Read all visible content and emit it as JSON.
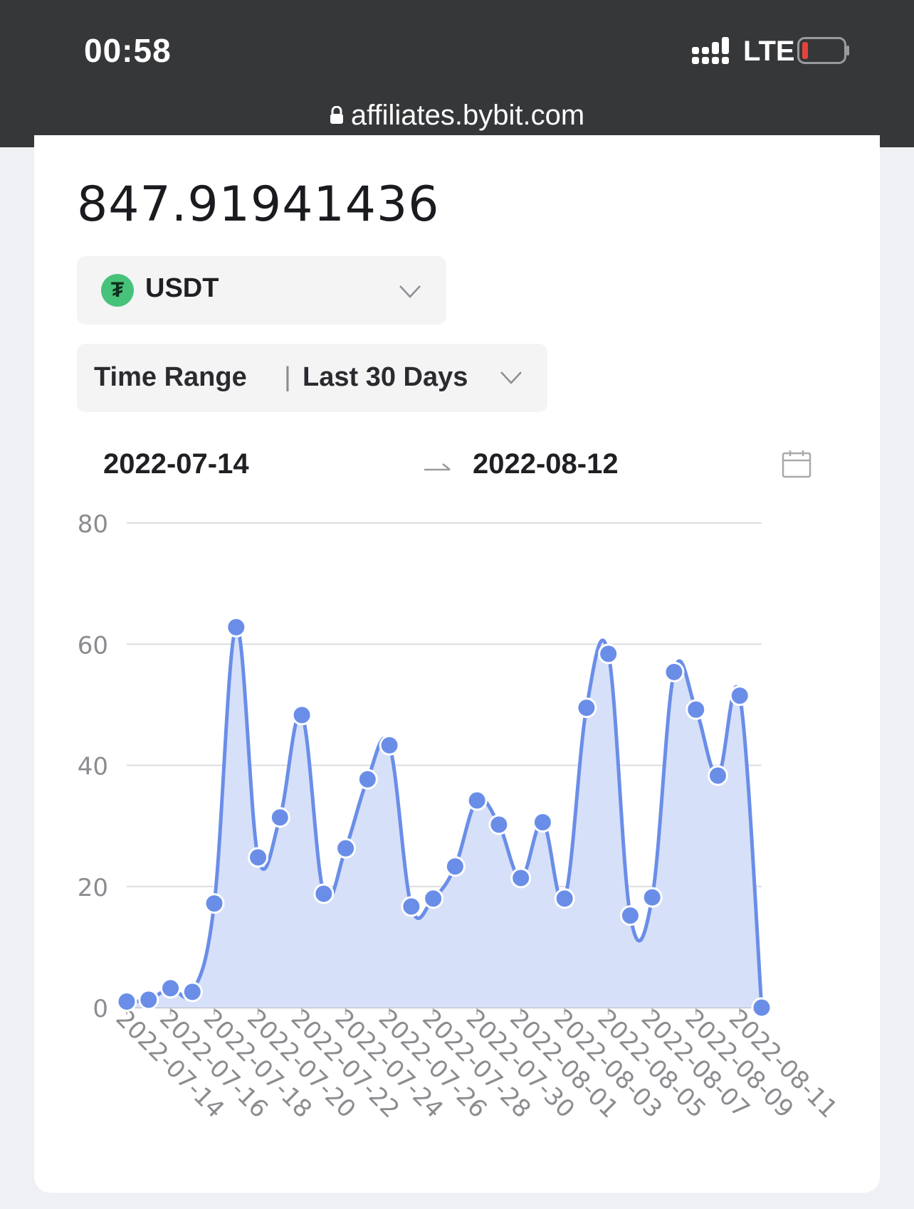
{
  "status_bar": {
    "time": "00:58",
    "network": "LTE",
    "url": "affiliates.bybit.com",
    "icons": [
      "signal-icon",
      "battery-icon",
      "lock-icon"
    ],
    "battery_color": "#e5423a"
  },
  "summary": {
    "amount": "847.91941436"
  },
  "currency": {
    "label": "USDT",
    "icon_symbol": "₮",
    "icon_color": "#47c27b"
  },
  "time_range": {
    "label": "Time Range",
    "divider": "|",
    "value": "Last 30 Days"
  },
  "date_range": {
    "start": "2022-07-14",
    "end": "2022-08-12"
  },
  "chart_data": {
    "type": "area",
    "accent_color": "#6a8ee8",
    "fill_color": "#d6e0f8",
    "x": [
      "2022-07-14",
      "2022-07-15",
      "2022-07-16",
      "2022-07-17",
      "2022-07-18",
      "2022-07-19",
      "2022-07-20",
      "2022-07-21",
      "2022-07-22",
      "2022-07-23",
      "2022-07-24",
      "2022-07-25",
      "2022-07-26",
      "2022-07-27",
      "2022-07-28",
      "2022-07-29",
      "2022-07-30",
      "2022-07-31",
      "2022-08-01",
      "2022-08-02",
      "2022-08-03",
      "2022-08-04",
      "2022-08-05",
      "2022-08-06",
      "2022-08-07",
      "2022-08-08",
      "2022-08-09",
      "2022-08-10",
      "2022-08-11",
      "2022-08-12"
    ],
    "values": [
      1.0,
      1.3,
      3.2,
      2.6,
      17.2,
      62.8,
      24.8,
      31.4,
      48.3,
      18.8,
      26.3,
      37.7,
      43.3,
      16.7,
      18.0,
      23.3,
      34.2,
      30.2,
      21.4,
      30.6,
      18.0,
      49.5,
      58.4,
      15.2,
      18.2,
      55.4,
      49.2,
      38.3,
      51.5,
      0.0
    ],
    "x_tick_labels": [
      "2022-07-14",
      "2022-07-16",
      "2022-07-18",
      "2022-07-20",
      "2022-07-22",
      "2022-07-24",
      "2022-07-26",
      "2022-07-28",
      "2022-07-30",
      "2022-08-01",
      "2022-08-03",
      "2022-08-05",
      "2022-08-07",
      "2022-08-09",
      "2022-08-11"
    ],
    "y_ticks": [
      "0",
      "20",
      "40",
      "60",
      "80"
    ],
    "ylim": [
      0,
      80
    ],
    "grid": true
  }
}
